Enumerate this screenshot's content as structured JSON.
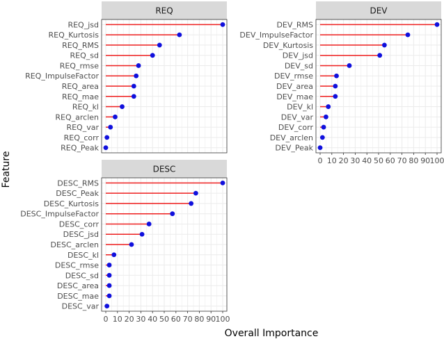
{
  "chart_data": {
    "type": "lollipop",
    "xlabel": "Overall Importance",
    "ylabel": "Feature",
    "xlim": [
      0,
      100
    ],
    "x_ticks": [
      "0",
      "10",
      "20",
      "30",
      "40",
      "50",
      "60",
      "70",
      "80",
      "90",
      "100"
    ],
    "grid": true,
    "colors": {
      "stem": "#ee1c1c",
      "point": "#1010dd",
      "strip": "#d9d9d9",
      "grid": "#ebebeb",
      "frame": "#333333"
    },
    "panels": [
      {
        "title": "REQ",
        "features": [
          {
            "name": "REQ_jsd",
            "value": 100
          },
          {
            "name": "REQ_Kurtosis",
            "value": 63
          },
          {
            "name": "REQ_RMS",
            "value": 46
          },
          {
            "name": "REQ_sd",
            "value": 40
          },
          {
            "name": "REQ_rmse",
            "value": 28
          },
          {
            "name": "REQ_ImpulseFactor",
            "value": 26
          },
          {
            "name": "REQ_area",
            "value": 24
          },
          {
            "name": "REQ_mae",
            "value": 24
          },
          {
            "name": "REQ_kl",
            "value": 14
          },
          {
            "name": "REQ_arclen",
            "value": 8
          },
          {
            "name": "REQ_var",
            "value": 4
          },
          {
            "name": "REQ_corr",
            "value": 1
          },
          {
            "name": "REQ_Peak",
            "value": 0
          }
        ]
      },
      {
        "title": "DEV",
        "features": [
          {
            "name": "DEV_RMS",
            "value": 100
          },
          {
            "name": "DEV_ImpulseFactor",
            "value": 75
          },
          {
            "name": "DEV_Kurtosis",
            "value": 55
          },
          {
            "name": "DEV_jsd",
            "value": 51
          },
          {
            "name": "DEV_sd",
            "value": 25
          },
          {
            "name": "DEV_rmse",
            "value": 14
          },
          {
            "name": "DEV_area",
            "value": 13
          },
          {
            "name": "DEV_mae",
            "value": 13
          },
          {
            "name": "DEV_kl",
            "value": 7
          },
          {
            "name": "DEV_var",
            "value": 5
          },
          {
            "name": "DEV_corr",
            "value": 3
          },
          {
            "name": "DEV_arclen",
            "value": 2
          },
          {
            "name": "DEV_Peak",
            "value": 0
          }
        ]
      },
      {
        "title": "DESC",
        "features": [
          {
            "name": "DESC_RMS",
            "value": 100
          },
          {
            "name": "DESC_Peak",
            "value": 77
          },
          {
            "name": "DESC_Kurtosis",
            "value": 73
          },
          {
            "name": "DESC_ImpulseFactor",
            "value": 57
          },
          {
            "name": "DESC_corr",
            "value": 37
          },
          {
            "name": "DESC_jsd",
            "value": 31
          },
          {
            "name": "DESC_arclen",
            "value": 22
          },
          {
            "name": "DESC_kl",
            "value": 7
          },
          {
            "name": "DESC_rmse",
            "value": 3
          },
          {
            "name": "DESC_sd",
            "value": 3
          },
          {
            "name": "DESC_area",
            "value": 3
          },
          {
            "name": "DESC_mae",
            "value": 3
          },
          {
            "name": "DESC_var",
            "value": 1
          }
        ]
      }
    ]
  }
}
